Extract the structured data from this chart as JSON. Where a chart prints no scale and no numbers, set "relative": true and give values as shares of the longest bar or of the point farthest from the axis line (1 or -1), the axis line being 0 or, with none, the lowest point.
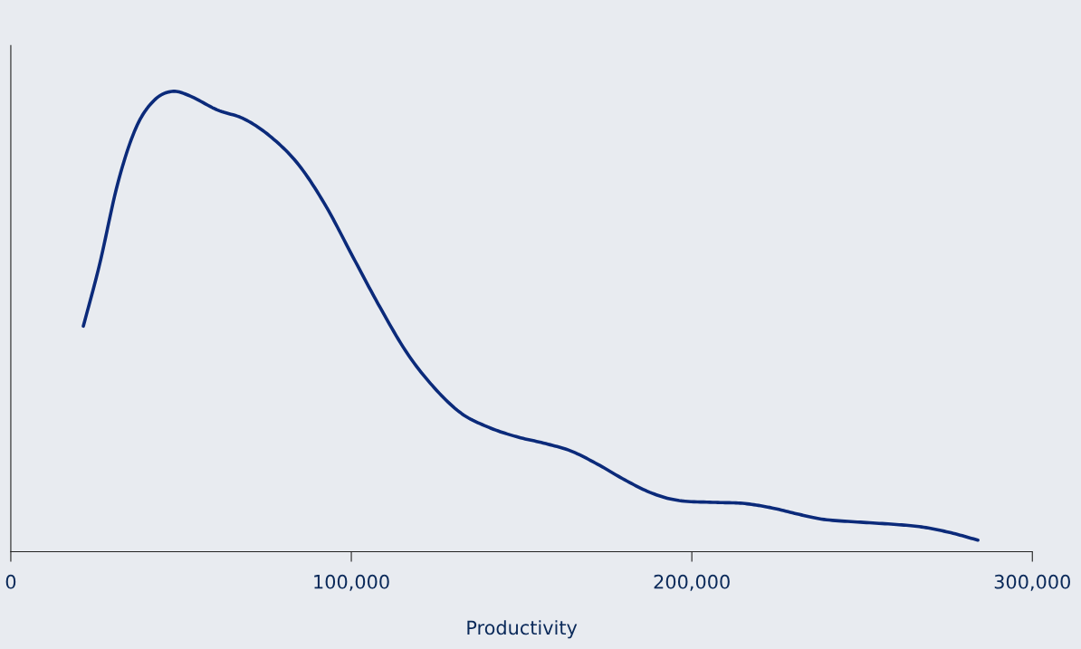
{
  "chart_data": {
    "type": "line",
    "xlabel": "Productivity",
    "relative": true,
    "xlim": [
      0,
      300000
    ],
    "xticks": [
      0,
      {
        "value": 100000,
        "label": "100,000"
      },
      {
        "value": 200000,
        "label": "200,000"
      },
      {
        "value": 300000,
        "label": "300,000"
      }
    ],
    "grid": false,
    "marker": "none",
    "line_style": "solid",
    "series": [
      {
        "color": "#0b2a7a",
        "x": [
          21300,
          26100,
          31400,
          36700,
          42000,
          47300,
          52700,
          60600,
          68600,
          76600,
          84600,
          92600,
          100500,
          108500,
          116500,
          124500,
          132400,
          140400,
          148400,
          156400,
          164400,
          172300,
          180300,
          188300,
          196300,
          206900,
          214900,
          222900,
          230900,
          238800,
          249500,
          260100,
          268100,
          276100,
          284000
        ],
        "values": [
          0.49,
          0.625,
          0.8,
          0.92,
          0.98,
          1.0,
          0.99,
          0.96,
          0.94,
          0.9,
          0.84,
          0.75,
          0.64,
          0.53,
          0.43,
          0.355,
          0.3,
          0.27,
          0.25,
          0.236,
          0.219,
          0.19,
          0.156,
          0.127,
          0.111,
          0.107,
          0.105,
          0.096,
          0.082,
          0.07,
          0.064,
          0.059,
          0.053,
          0.041,
          0.025
        ]
      }
    ]
  }
}
